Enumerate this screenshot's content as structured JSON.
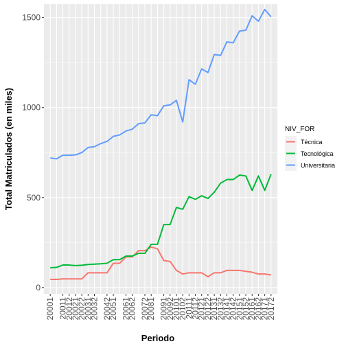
{
  "chart_data": {
    "type": "line",
    "xlabel": "Periodo",
    "ylabel": "Total Matriculados (en miles)",
    "ylim": [
      -35,
      1575
    ],
    "yticks": [
      0,
      500,
      1000,
      1500
    ],
    "x": [
      "20001",
      "20002",
      "20011",
      "20012",
      "20021",
      "20022",
      "20031",
      "20032",
      "20041",
      "20042",
      "20051",
      "20052",
      "20061",
      "20062",
      "20071",
      "20072",
      "20081",
      "20082",
      "20091",
      "20092",
      "20101",
      "20102",
      "20111",
      "20112",
      "20121",
      "20122",
      "20131",
      "20132",
      "20141",
      "20142",
      "20151",
      "20152",
      "20161",
      "20162",
      "20171",
      "20172"
    ],
    "x_tick_labels": [
      "20001",
      "20011",
      "20012",
      "20021",
      "20022",
      "20031",
      "20032",
      "20042",
      "20051",
      "20061",
      "20062",
      "20072",
      "20081",
      "20091",
      "20092",
      "20101",
      "20102",
      "20111",
      "20112",
      "20121",
      "20122",
      "20131",
      "20132",
      "20141",
      "20142",
      "20151",
      "20152",
      "20161",
      "20162",
      "20171",
      "20172"
    ],
    "legend": {
      "title": "NIV_FOR",
      "placement": "right"
    },
    "grid": true,
    "series": [
      {
        "name": "Técnica",
        "color": "#F8766D",
        "values": [
          45,
          45,
          48,
          48,
          48,
          48,
          82,
          82,
          82,
          82,
          135,
          135,
          170,
          170,
          205,
          205,
          225,
          215,
          150,
          145,
          95,
          75,
          82,
          82,
          82,
          60,
          82,
          82,
          95,
          95,
          95,
          90,
          85,
          75,
          75,
          70
        ]
      },
      {
        "name": "Tecnológica",
        "color": "#00BA38",
        "values": [
          110,
          112,
          125,
          125,
          122,
          124,
          128,
          130,
          132,
          135,
          155,
          155,
          175,
          175,
          190,
          190,
          240,
          240,
          350,
          350,
          445,
          435,
          505,
          490,
          510,
          495,
          530,
          580,
          600,
          600,
          625,
          620,
          540,
          620,
          540,
          630
        ]
      },
      {
        "name": "Universitaria",
        "color": "#619CFF",
        "values": [
          720,
          715,
          735,
          735,
          737,
          750,
          778,
          783,
          800,
          812,
          840,
          848,
          870,
          880,
          910,
          915,
          960,
          955,
          1010,
          1015,
          1040,
          920,
          1155,
          1130,
          1215,
          1195,
          1295,
          1290,
          1365,
          1360,
          1425,
          1430,
          1510,
          1480,
          1545,
          1505
        ]
      }
    ]
  }
}
